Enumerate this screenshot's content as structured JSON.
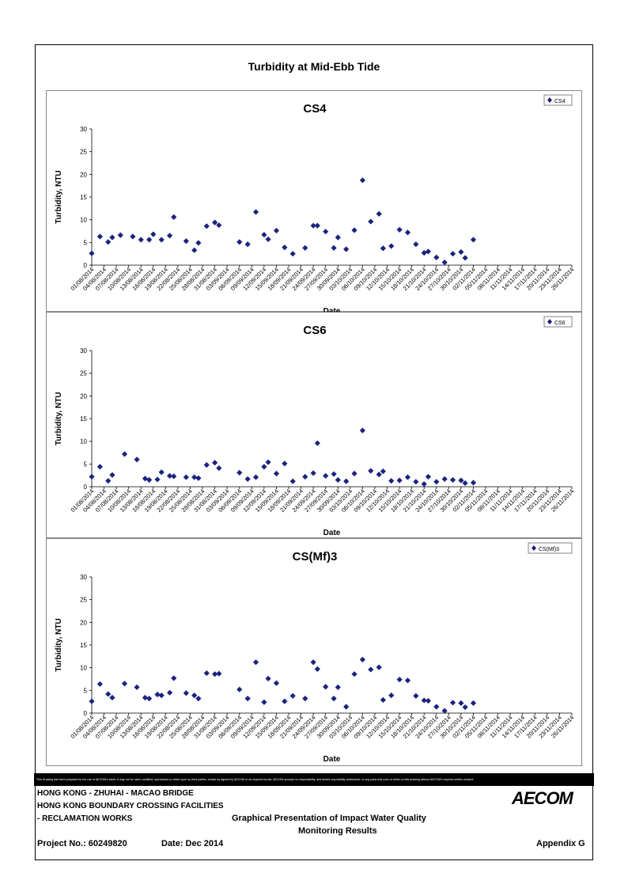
{
  "main_title": "Turbidity at Mid-Ebb Tide",
  "dates": [
    "01/08/2014",
    "04/08/2014",
    "07/08/2014",
    "10/08/2014",
    "13/08/2014",
    "16/08/2014",
    "19/08/2014",
    "22/08/2014",
    "25/08/2014",
    "28/08/2014",
    "31/08/2014",
    "03/09/2014",
    "06/09/2014",
    "09/09/2014",
    "12/09/2014",
    "15/09/2014",
    "18/09/2014",
    "21/09/2014",
    "24/09/2014",
    "27/09/2014",
    "30/09/2014",
    "03/10/2014",
    "06/10/2014",
    "09/10/2014",
    "12/10/2014",
    "15/10/2014",
    "18/10/2014",
    "21/10/2014",
    "24/10/2014",
    "27/10/2014",
    "30/10/2014",
    "02/11/2014",
    "05/11/2014",
    "08/11/2014",
    "11/11/2014",
    "14/11/2014",
    "17/11/2014",
    "20/11/2014",
    "23/11/2014",
    "26/11/2014"
  ],
  "chart_data": [
    {
      "type": "scatter",
      "title": "CS4",
      "xlabel": "Date",
      "ylabel": "Turbidity, NTU",
      "ylim": [
        0,
        30
      ],
      "yticks": [
        0,
        5,
        10,
        15,
        20,
        25,
        30
      ],
      "legend": "top-right",
      "series": [
        {
          "name": "CS4",
          "color": "#1a237e",
          "marker": "diamond",
          "points": [
            {
              "x": "01/08/2014",
              "y": 2.6
            },
            {
              "x": "03/08/2014",
              "y": 6.3
            },
            {
              "x": "05/08/2014",
              "y": 5.1
            },
            {
              "x": "06/08/2014",
              "y": 6.1
            },
            {
              "x": "08/08/2014",
              "y": 6.6
            },
            {
              "x": "11/08/2014",
              "y": 6.3
            },
            {
              "x": "13/08/2014",
              "y": 5.6
            },
            {
              "x": "15/08/2014",
              "y": 5.6
            },
            {
              "x": "16/08/2014",
              "y": 6.8
            },
            {
              "x": "18/08/2014",
              "y": 5.6
            },
            {
              "x": "20/08/2014",
              "y": 6.5
            },
            {
              "x": "21/08/2014",
              "y": 10.6
            },
            {
              "x": "24/08/2014",
              "y": 5.3
            },
            {
              "x": "26/08/2014",
              "y": 3.3
            },
            {
              "x": "27/08/2014",
              "y": 4.9
            },
            {
              "x": "29/08/2014",
              "y": 8.6
            },
            {
              "x": "31/08/2014",
              "y": 9.4
            },
            {
              "x": "01/09/2014",
              "y": 8.8
            },
            {
              "x": "06/09/2014",
              "y": 5.1
            },
            {
              "x": "08/09/2014",
              "y": 4.6
            },
            {
              "x": "10/09/2014",
              "y": 11.7
            },
            {
              "x": "12/09/2014",
              "y": 6.7
            },
            {
              "x": "13/09/2014",
              "y": 5.7
            },
            {
              "x": "15/09/2014",
              "y": 7.6
            },
            {
              "x": "17/09/2014",
              "y": 3.9
            },
            {
              "x": "19/09/2014",
              "y": 2.5
            },
            {
              "x": "22/09/2014",
              "y": 3.8
            },
            {
              "x": "24/09/2014",
              "y": 8.7
            },
            {
              "x": "25/09/2014",
              "y": 8.7
            },
            {
              "x": "27/09/2014",
              "y": 7.4
            },
            {
              "x": "29/09/2014",
              "y": 3.8
            },
            {
              "x": "30/09/2014",
              "y": 6.1
            },
            {
              "x": "02/10/2014",
              "y": 3.5
            },
            {
              "x": "04/10/2014",
              "y": 7.7
            },
            {
              "x": "06/10/2014",
              "y": 18.7
            },
            {
              "x": "08/10/2014",
              "y": 9.6
            },
            {
              "x": "10/10/2014",
              "y": 11.3
            },
            {
              "x": "11/10/2014",
              "y": 3.7
            },
            {
              "x": "13/10/2014",
              "y": 4.2
            },
            {
              "x": "15/10/2014",
              "y": 7.8
            },
            {
              "x": "17/10/2014",
              "y": 7.2
            },
            {
              "x": "19/10/2014",
              "y": 4.6
            },
            {
              "x": "21/10/2014",
              "y": 2.7
            },
            {
              "x": "22/10/2014",
              "y": 3.0
            },
            {
              "x": "24/10/2014",
              "y": 1.7
            },
            {
              "x": "26/10/2014",
              "y": 0.6
            },
            {
              "x": "28/10/2014",
              "y": 2.5
            },
            {
              "x": "30/10/2014",
              "y": 2.9
            },
            {
              "x": "31/10/2014",
              "y": 1.6
            },
            {
              "x": "02/11/2014",
              "y": 5.6
            }
          ]
        }
      ]
    },
    {
      "type": "scatter",
      "title": "CS6",
      "xlabel": "Date",
      "ylabel": "Turbidity, NTU",
      "ylim": [
        0,
        30
      ],
      "yticks": [
        0,
        5,
        10,
        15,
        20,
        25,
        30
      ],
      "legend": "top-right",
      "series": [
        {
          "name": "CS6",
          "color": "#1a237e",
          "marker": "diamond",
          "points": [
            {
              "x": "01/08/2014",
              "y": 2.2
            },
            {
              "x": "03/08/2014",
              "y": 4.4
            },
            {
              "x": "05/08/2014",
              "y": 1.3
            },
            {
              "x": "06/08/2014",
              "y": 2.6
            },
            {
              "x": "09/08/2014",
              "y": 7.2
            },
            {
              "x": "12/08/2014",
              "y": 6.0
            },
            {
              "x": "14/08/2014",
              "y": 1.8
            },
            {
              "x": "15/08/2014",
              "y": 1.5
            },
            {
              "x": "17/08/2014",
              "y": 1.6
            },
            {
              "x": "18/08/2014",
              "y": 3.2
            },
            {
              "x": "20/08/2014",
              "y": 2.4
            },
            {
              "x": "21/08/2014",
              "y": 2.3
            },
            {
              "x": "24/08/2014",
              "y": 2.1
            },
            {
              "x": "26/08/2014",
              "y": 2.1
            },
            {
              "x": "27/08/2014",
              "y": 1.9
            },
            {
              "x": "29/08/2014",
              "y": 4.8
            },
            {
              "x": "31/08/2014",
              "y": 5.3
            },
            {
              "x": "01/09/2014",
              "y": 4.1
            },
            {
              "x": "06/09/2014",
              "y": 3.1
            },
            {
              "x": "08/09/2014",
              "y": 1.7
            },
            {
              "x": "10/09/2014",
              "y": 2.1
            },
            {
              "x": "12/09/2014",
              "y": 4.4
            },
            {
              "x": "13/09/2014",
              "y": 5.4
            },
            {
              "x": "15/09/2014",
              "y": 2.9
            },
            {
              "x": "17/09/2014",
              "y": 5.1
            },
            {
              "x": "19/09/2014",
              "y": 1.2
            },
            {
              "x": "22/09/2014",
              "y": 2.2
            },
            {
              "x": "24/09/2014",
              "y": 3.0
            },
            {
              "x": "25/09/2014",
              "y": 9.6
            },
            {
              "x": "27/09/2014",
              "y": 2.4
            },
            {
              "x": "29/09/2014",
              "y": 2.8
            },
            {
              "x": "30/09/2014",
              "y": 1.5
            },
            {
              "x": "02/10/2014",
              "y": 1.2
            },
            {
              "x": "04/10/2014",
              "y": 2.9
            },
            {
              "x": "06/10/2014",
              "y": 12.4
            },
            {
              "x": "08/10/2014",
              "y": 3.5
            },
            {
              "x": "10/10/2014",
              "y": 2.7
            },
            {
              "x": "11/10/2014",
              "y": 3.4
            },
            {
              "x": "13/10/2014",
              "y": 1.3
            },
            {
              "x": "15/10/2014",
              "y": 1.4
            },
            {
              "x": "17/10/2014",
              "y": 2.1
            },
            {
              "x": "19/10/2014",
              "y": 1.1
            },
            {
              "x": "21/10/2014",
              "y": 0.6
            },
            {
              "x": "22/10/2014",
              "y": 2.2
            },
            {
              "x": "24/10/2014",
              "y": 1.1
            },
            {
              "x": "26/10/2014",
              "y": 1.7
            },
            {
              "x": "28/10/2014",
              "y": 1.5
            },
            {
              "x": "30/10/2014",
              "y": 1.4
            },
            {
              "x": "31/10/2014",
              "y": 0.8
            },
            {
              "x": "02/11/2014",
              "y": 0.9
            }
          ]
        }
      ]
    },
    {
      "type": "scatter",
      "title": "CS(Mf)3",
      "xlabel": "Date",
      "ylabel": "Turbidity, NTU",
      "ylim": [
        0,
        30
      ],
      "yticks": [
        0,
        5,
        10,
        15,
        20,
        25,
        30
      ],
      "legend": "top-right",
      "series": [
        {
          "name": "CS(Mf)3",
          "color": "#1a237e",
          "marker": "diamond",
          "points": [
            {
              "x": "01/08/2014",
              "y": 2.6
            },
            {
              "x": "03/08/2014",
              "y": 6.4
            },
            {
              "x": "05/08/2014",
              "y": 4.2
            },
            {
              "x": "06/08/2014",
              "y": 3.4
            },
            {
              "x": "09/08/2014",
              "y": 6.5
            },
            {
              "x": "12/08/2014",
              "y": 5.7
            },
            {
              "x": "14/08/2014",
              "y": 3.4
            },
            {
              "x": "15/08/2014",
              "y": 3.2
            },
            {
              "x": "17/08/2014",
              "y": 4.1
            },
            {
              "x": "18/08/2014",
              "y": 3.9
            },
            {
              "x": "20/08/2014",
              "y": 4.5
            },
            {
              "x": "21/08/2014",
              "y": 7.7
            },
            {
              "x": "24/08/2014",
              "y": 4.4
            },
            {
              "x": "26/08/2014",
              "y": 3.9
            },
            {
              "x": "27/08/2014",
              "y": 3.2
            },
            {
              "x": "29/08/2014",
              "y": 8.8
            },
            {
              "x": "31/08/2014",
              "y": 8.6
            },
            {
              "x": "01/09/2014",
              "y": 8.7
            },
            {
              "x": "06/09/2014",
              "y": 5.2
            },
            {
              "x": "08/09/2014",
              "y": 3.2
            },
            {
              "x": "10/09/2014",
              "y": 11.2
            },
            {
              "x": "12/09/2014",
              "y": 2.4
            },
            {
              "x": "13/09/2014",
              "y": 7.6
            },
            {
              "x": "15/09/2014",
              "y": 6.6
            },
            {
              "x": "17/09/2014",
              "y": 2.6
            },
            {
              "x": "19/09/2014",
              "y": 3.8
            },
            {
              "x": "22/09/2014",
              "y": 3.2
            },
            {
              "x": "24/09/2014",
              "y": 11.2
            },
            {
              "x": "25/09/2014",
              "y": 9.7
            },
            {
              "x": "27/09/2014",
              "y": 5.8
            },
            {
              "x": "29/09/2014",
              "y": 3.2
            },
            {
              "x": "30/09/2014",
              "y": 5.7
            },
            {
              "x": "02/10/2014",
              "y": 1.4
            },
            {
              "x": "04/10/2014",
              "y": 8.6
            },
            {
              "x": "06/10/2014",
              "y": 11.8
            },
            {
              "x": "08/10/2014",
              "y": 9.6
            },
            {
              "x": "10/10/2014",
              "y": 10.1
            },
            {
              "x": "11/10/2014",
              "y": 2.9
            },
            {
              "x": "13/10/2014",
              "y": 3.9
            },
            {
              "x": "15/10/2014",
              "y": 7.4
            },
            {
              "x": "17/10/2014",
              "y": 7.2
            },
            {
              "x": "19/10/2014",
              "y": 3.8
            },
            {
              "x": "21/10/2014",
              "y": 2.8
            },
            {
              "x": "22/10/2014",
              "y": 2.7
            },
            {
              "x": "24/10/2014",
              "y": 1.4
            },
            {
              "x": "26/10/2014",
              "y": 0.5
            },
            {
              "x": "28/10/2014",
              "y": 2.3
            },
            {
              "x": "30/10/2014",
              "y": 2.2
            },
            {
              "x": "31/10/2014",
              "y": 1.3
            },
            {
              "x": "02/11/2014",
              "y": 2.2
            }
          ]
        }
      ]
    }
  ],
  "disclaimer": "This Drawing has been prepared for the use of AECOM's client. It may not be used, modified, reproduced or relied upon by third parties, except as agreed by AECOM or as required by law. AECOM accepts no responsibility, and denies any liability whatsoever, to any party that uses or relies on this drawing without AECOM's express written consent.",
  "footer": {
    "project_line1": "HONG KONG - ZHUHAI - MACAO BRIDGE",
    "project_line2": "HONG KONG BOUNDARY CROSSING FACILITIES",
    "project_line3": "- RECLAMATION WORKS",
    "doc_title_line1": "Graphical Presentation of Impact Water Quality",
    "doc_title_line2": "Monitoring Results",
    "project_no": "Project No.: 60249820",
    "date": "Date: Dec 2014",
    "appendix": "Appendix G",
    "logo": "AECOM"
  }
}
